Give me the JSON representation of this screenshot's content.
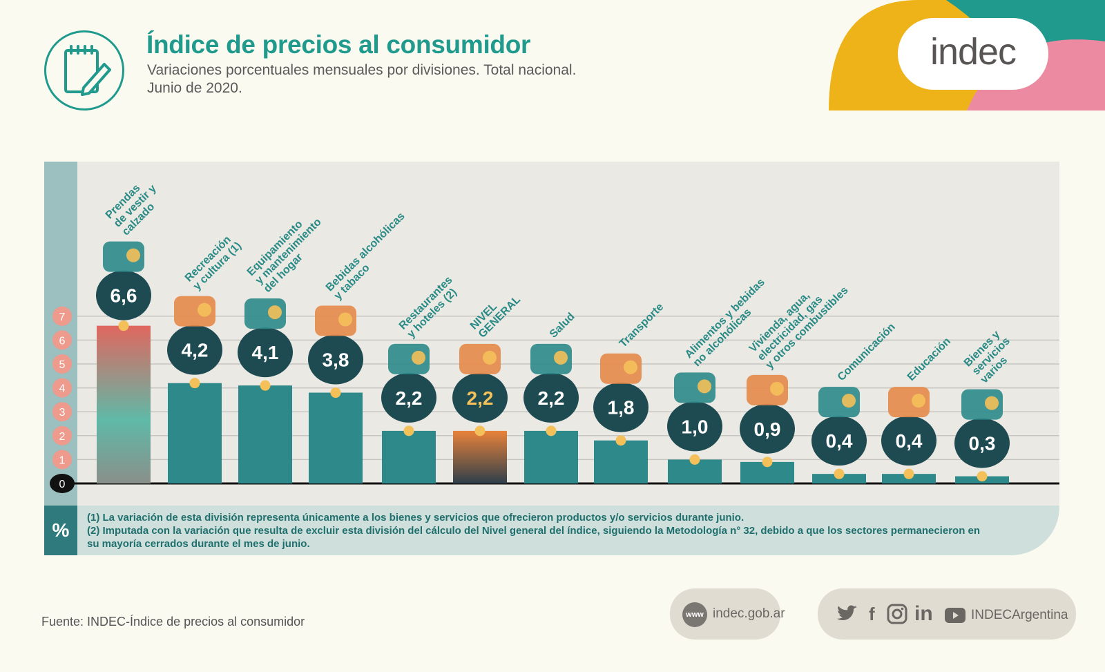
{
  "header": {
    "title": "Índice de precios al consumidor",
    "subtitle_line1": "Variaciones porcentuales mensuales por divisiones. Total nacional.",
    "subtitle_line2": "Junio de 2020.",
    "brand": "indec"
  },
  "footer": {
    "source": "Fuente: INDEC-Índice de precios al consumidor",
    "website": "indec.gob.ar",
    "www_badge": "www",
    "social_handle": "INDECArgentina",
    "social_icons": [
      "twitter-icon",
      "facebook-icon",
      "instagram-icon",
      "linkedin-icon",
      "youtube-icon"
    ]
  },
  "notes": {
    "pct_label": "%",
    "note1": "(1) La variación de esta división representa únicamente a los bienes y servicios que ofrecieron productos y/o servicios durante junio.",
    "note2": "(2) Imputada con la variación que resulta de excluir esta división del cálculo del Nivel general del índice, siguiendo la Metodología n° 32, debido a que los sectores permanecieron en su mayoría cerrados durante el mes de junio."
  },
  "colors": {
    "teal": "#2e8a8a",
    "dark_teal": "#1e4a52",
    "highlight_bar_top": "#e0675f",
    "highlight_bar_bottom": "#5fb9a7",
    "general_bar_top": "#e8823a",
    "general_bar_bottom": "#2f3f4a",
    "dot": "#f4c05a",
    "tick_badge": "#ee9a8c",
    "general_value": "#f4c05a"
  },
  "chart_data": {
    "type": "bar",
    "title": "",
    "ylabel": "%",
    "ylim": [
      0,
      7
    ],
    "yticks": [
      "0",
      "1",
      "2",
      "3",
      "4",
      "5",
      "6",
      "7"
    ],
    "grid": true,
    "categories": [
      [
        "Prendas",
        "de vestir y",
        "calzado"
      ],
      [
        "Recreación",
        "y cultura (1)"
      ],
      [
        "Equipamiento",
        "y mantenimiento",
        "del hogar"
      ],
      [
        "Bebidas alcohólicas",
        "y tabaco"
      ],
      [
        "Restaurantes",
        "y hoteles (2)"
      ],
      [
        "NIVEL",
        "GENERAL"
      ],
      [
        "Salud"
      ],
      [
        "Transporte"
      ],
      [
        "Alimentos y bebidas",
        "no alcohólicas"
      ],
      [
        "Vivienda, agua,",
        "electricidad, gas",
        "y otros combustibles"
      ],
      [
        "Comunicación"
      ],
      [
        "Educación"
      ],
      [
        "Bienes y",
        "servicios",
        "varios"
      ]
    ],
    "values": [
      6.6,
      4.2,
      4.1,
      3.8,
      2.2,
      2.2,
      2.2,
      1.8,
      1.0,
      0.9,
      0.4,
      0.4,
      0.3
    ],
    "value_labels": [
      "6,6",
      "4,2",
      "4,1",
      "3,8",
      "2,2",
      "2,2",
      "2,2",
      "1,8",
      "1,0",
      "0,9",
      "0,4",
      "0,4",
      "0,3"
    ],
    "highlight_index": 0,
    "general_index": 5
  }
}
